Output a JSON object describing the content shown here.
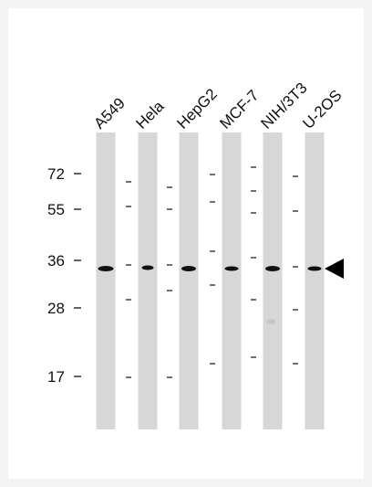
{
  "lanes": [
    {
      "label": "A549"
    },
    {
      "label": "Hela"
    },
    {
      "label": "HepG2"
    },
    {
      "label": "MCF-7"
    },
    {
      "label": "NIH/3T3"
    },
    {
      "label": "U-2OS"
    }
  ],
  "markers": [
    {
      "label": "72"
    },
    {
      "label": "55"
    },
    {
      "label": "36"
    },
    {
      "label": "28"
    },
    {
      "label": "17"
    }
  ],
  "target_arrow": "arrowhead-left-icon"
}
